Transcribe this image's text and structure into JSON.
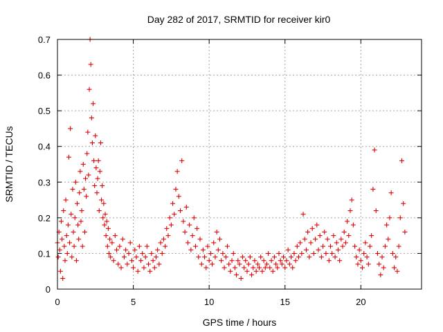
{
  "chart_data": {
    "type": "scatter",
    "title": "Day 282 of 2017, SRMTID for receiver kir0",
    "xlabel": "GPS time / hours",
    "ylabel": "SRMTID / TECUs",
    "xlim": [
      0,
      24
    ],
    "ylim": [
      0,
      0.7
    ],
    "xticks": [
      0,
      5,
      10,
      15,
      20
    ],
    "xtick_labels": [
      "0",
      "5",
      "10",
      "15",
      "20"
    ],
    "yticks": [
      0,
      0.1,
      0.2,
      0.3,
      0.4,
      0.5,
      0.6,
      0.7
    ],
    "ytick_labels": [
      "0",
      "0.1",
      "0.2",
      "0.3",
      "0.4",
      "0.5",
      "0.6",
      "0.7"
    ],
    "grid": true,
    "marker": "+",
    "color": "#e00000",
    "series": [
      {
        "name": "SRMTID",
        "points": [
          [
            0.0,
            0.13
          ],
          [
            0.05,
            0.09
          ],
          [
            0.1,
            0.16
          ],
          [
            0.15,
            0.11
          ],
          [
            0.2,
            0.05
          ],
          [
            0.25,
            0.19
          ],
          [
            0.3,
            0.14
          ],
          [
            0.35,
            0.03
          ],
          [
            0.4,
            0.22
          ],
          [
            0.45,
            0.12
          ],
          [
            0.5,
            0.08
          ],
          [
            0.55,
            0.25
          ],
          [
            0.6,
            0.15
          ],
          [
            0.65,
            0.1
          ],
          [
            0.7,
            0.18
          ],
          [
            0.75,
            0.37
          ],
          [
            0.8,
            0.13
          ],
          [
            0.85,
            0.45
          ],
          [
            0.9,
            0.21
          ],
          [
            0.95,
            0.09
          ],
          [
            1.0,
            0.28
          ],
          [
            1.05,
            0.16
          ],
          [
            1.1,
            0.12
          ],
          [
            1.15,
            0.2
          ],
          [
            1.2,
            0.3
          ],
          [
            1.25,
            0.08
          ],
          [
            1.3,
            0.24
          ],
          [
            1.35,
            0.18
          ],
          [
            1.4,
            0.14
          ],
          [
            1.45,
            0.27
          ],
          [
            1.5,
            0.33
          ],
          [
            1.55,
            0.19
          ],
          [
            1.6,
            0.22
          ],
          [
            1.65,
            0.12
          ],
          [
            1.7,
            0.35
          ],
          [
            1.75,
            0.28
          ],
          [
            1.8,
            0.16
          ],
          [
            1.85,
            0.31
          ],
          [
            1.9,
            0.26
          ],
          [
            1.95,
            0.38
          ],
          [
            2.0,
            0.44
          ],
          [
            2.05,
            0.32
          ],
          [
            2.1,
            0.56
          ],
          [
            2.15,
            0.7
          ],
          [
            2.2,
            0.63
          ],
          [
            2.25,
            0.48
          ],
          [
            2.3,
            0.41
          ],
          [
            2.35,
            0.52
          ],
          [
            2.4,
            0.36
          ],
          [
            2.45,
            0.29
          ],
          [
            2.5,
            0.43
          ],
          [
            2.55,
            0.34
          ],
          [
            2.6,
            0.27
          ],
          [
            2.65,
            0.31
          ],
          [
            2.7,
            0.36
          ],
          [
            2.75,
            0.22
          ],
          [
            2.8,
            0.33
          ],
          [
            2.85,
            0.41
          ],
          [
            2.9,
            0.25
          ],
          [
            2.95,
            0.29
          ],
          [
            3.0,
            0.2
          ],
          [
            3.05,
            0.24
          ],
          [
            3.1,
            0.18
          ],
          [
            3.15,
            0.21
          ],
          [
            3.2,
            0.15
          ],
          [
            3.25,
            0.19
          ],
          [
            3.3,
            0.12
          ],
          [
            3.35,
            0.17
          ],
          [
            3.4,
            0.1
          ],
          [
            3.45,
            0.14
          ],
          [
            3.5,
            0.09
          ],
          [
            3.6,
            0.13
          ],
          [
            3.7,
            0.08
          ],
          [
            3.8,
            0.15
          ],
          [
            3.9,
            0.11
          ],
          [
            4.0,
            0.07
          ],
          [
            4.1,
            0.12
          ],
          [
            4.2,
            0.06
          ],
          [
            4.3,
            0.14
          ],
          [
            4.4,
            0.09
          ],
          [
            4.5,
            0.11
          ],
          [
            4.6,
            0.07
          ],
          [
            4.7,
            0.1
          ],
          [
            4.8,
            0.13
          ],
          [
            4.9,
            0.08
          ],
          [
            5.0,
            0.06
          ],
          [
            5.1,
            0.11
          ],
          [
            5.2,
            0.09
          ],
          [
            5.3,
            0.05
          ],
          [
            5.4,
            0.12
          ],
          [
            5.5,
            0.08
          ],
          [
            5.6,
            0.1
          ],
          [
            5.7,
            0.06
          ],
          [
            5.8,
            0.09
          ],
          [
            5.9,
            0.12
          ],
          [
            6.0,
            0.07
          ],
          [
            6.1,
            0.05
          ],
          [
            6.2,
            0.1
          ],
          [
            6.3,
            0.08
          ],
          [
            6.4,
            0.06
          ],
          [
            6.5,
            0.09
          ],
          [
            6.6,
            0.11
          ],
          [
            6.7,
            0.07
          ],
          [
            6.8,
            0.13
          ],
          [
            6.9,
            0.1
          ],
          [
            7.0,
            0.14
          ],
          [
            7.1,
            0.12
          ],
          [
            7.2,
            0.17
          ],
          [
            7.3,
            0.15
          ],
          [
            7.4,
            0.2
          ],
          [
            7.5,
            0.18
          ],
          [
            7.6,
            0.24
          ],
          [
            7.7,
            0.21
          ],
          [
            7.8,
            0.28
          ],
          [
            7.9,
            0.33
          ],
          [
            8.0,
            0.26
          ],
          [
            8.1,
            0.22
          ],
          [
            8.2,
            0.36
          ],
          [
            8.3,
            0.19
          ],
          [
            8.4,
            0.16
          ],
          [
            8.5,
            0.23
          ],
          [
            8.6,
            0.13
          ],
          [
            8.7,
            0.18
          ],
          [
            8.8,
            0.11
          ],
          [
            8.9,
            0.15
          ],
          [
            9.0,
            0.2
          ],
          [
            9.1,
            0.12
          ],
          [
            9.2,
            0.17
          ],
          [
            9.3,
            0.09
          ],
          [
            9.4,
            0.14
          ],
          [
            9.5,
            0.07
          ],
          [
            9.6,
            0.11
          ],
          [
            9.7,
            0.09
          ],
          [
            9.8,
            0.06
          ],
          [
            9.9,
            0.12
          ],
          [
            10.0,
            0.08
          ],
          [
            10.1,
            0.1
          ],
          [
            10.2,
            0.07
          ],
          [
            10.3,
            0.13
          ],
          [
            10.4,
            0.09
          ],
          [
            10.5,
            0.16
          ],
          [
            10.6,
            0.11
          ],
          [
            10.7,
            0.14
          ],
          [
            10.8,
            0.08
          ],
          [
            10.9,
            0.1
          ],
          [
            11.0,
            0.06
          ],
          [
            11.1,
            0.09
          ],
          [
            11.2,
            0.12
          ],
          [
            11.3,
            0.07
          ],
          [
            11.4,
            0.05
          ],
          [
            11.5,
            0.08
          ],
          [
            11.6,
            0.1
          ],
          [
            11.7,
            0.06
          ],
          [
            11.8,
            0.04
          ],
          [
            11.9,
            0.08
          ],
          [
            12.0,
            0.07
          ],
          [
            12.1,
            0.03
          ],
          [
            12.2,
            0.09
          ],
          [
            12.3,
            0.06
          ],
          [
            12.4,
            0.08
          ],
          [
            12.5,
            0.05
          ],
          [
            12.6,
            0.07
          ],
          [
            12.7,
            0.09
          ],
          [
            12.8,
            0.04
          ],
          [
            12.9,
            0.06
          ],
          [
            13.0,
            0.08
          ],
          [
            13.1,
            0.05
          ],
          [
            13.2,
            0.07
          ],
          [
            13.3,
            0.06
          ],
          [
            13.4,
            0.09
          ],
          [
            13.5,
            0.05
          ],
          [
            13.6,
            0.08
          ],
          [
            13.7,
            0.06
          ],
          [
            13.8,
            0.07
          ],
          [
            13.9,
            0.1
          ],
          [
            14.0,
            0.06
          ],
          [
            14.1,
            0.08
          ],
          [
            14.2,
            0.05
          ],
          [
            14.3,
            0.09
          ],
          [
            14.4,
            0.07
          ],
          [
            14.5,
            0.06
          ],
          [
            14.6,
            0.1
          ],
          [
            14.7,
            0.08
          ],
          [
            14.8,
            0.07
          ],
          [
            14.9,
            0.09
          ],
          [
            15.0,
            0.06
          ],
          [
            15.1,
            0.08
          ],
          [
            15.2,
            0.11
          ],
          [
            15.3,
            0.07
          ],
          [
            15.4,
            0.09
          ],
          [
            15.5,
            0.06
          ],
          [
            15.6,
            0.1
          ],
          [
            15.7,
            0.08
          ],
          [
            15.8,
            0.12
          ],
          [
            15.9,
            0.09
          ],
          [
            16.0,
            0.13
          ],
          [
            16.1,
            0.1
          ],
          [
            16.2,
            0.21
          ],
          [
            16.3,
            0.14
          ],
          [
            16.4,
            0.11
          ],
          [
            16.5,
            0.16
          ],
          [
            16.6,
            0.09
          ],
          [
            16.7,
            0.13
          ],
          [
            16.8,
            0.17
          ],
          [
            16.9,
            0.1
          ],
          [
            17.0,
            0.14
          ],
          [
            17.1,
            0.18
          ],
          [
            17.2,
            0.11
          ],
          [
            17.3,
            0.15
          ],
          [
            17.4,
            0.09
          ],
          [
            17.5,
            0.12
          ],
          [
            17.6,
            0.16
          ],
          [
            17.7,
            0.1
          ],
          [
            17.8,
            0.14
          ],
          [
            17.9,
            0.08
          ],
          [
            18.0,
            0.12
          ],
          [
            18.1,
            0.1
          ],
          [
            18.2,
            0.15
          ],
          [
            18.3,
            0.09
          ],
          [
            18.4,
            0.13
          ],
          [
            18.5,
            0.11
          ],
          [
            18.6,
            0.08
          ],
          [
            18.7,
            0.14
          ],
          [
            18.8,
            0.12
          ],
          [
            18.9,
            0.16
          ],
          [
            19.0,
            0.13
          ],
          [
            19.1,
            0.19
          ],
          [
            19.2,
            0.15
          ],
          [
            19.3,
            0.22
          ],
          [
            19.4,
            0.25
          ],
          [
            19.5,
            0.18
          ],
          [
            19.6,
            0.12
          ],
          [
            19.7,
            0.09
          ],
          [
            19.8,
            0.07
          ],
          [
            19.9,
            0.11
          ],
          [
            20.0,
            0.08
          ],
          [
            20.1,
            0.06
          ],
          [
            20.2,
            0.1
          ],
          [
            20.3,
            0.13
          ],
          [
            20.4,
            0.09
          ],
          [
            20.5,
            0.07
          ],
          [
            20.6,
            0.12
          ],
          [
            20.7,
            0.15
          ],
          [
            20.8,
            0.28
          ],
          [
            20.9,
            0.39
          ],
          [
            21.0,
            0.22
          ],
          [
            21.1,
            0.1
          ],
          [
            21.2,
            0.07
          ],
          [
            21.3,
            0.04
          ],
          [
            21.4,
            0.09
          ],
          [
            21.5,
            0.06
          ],
          [
            21.6,
            0.12
          ],
          [
            21.7,
            0.18
          ],
          [
            21.8,
            0.14
          ],
          [
            21.9,
            0.2
          ],
          [
            22.0,
            0.27
          ],
          [
            22.1,
            0.1
          ],
          [
            22.2,
            0.06
          ],
          [
            22.3,
            0.09
          ],
          [
            22.4,
            0.05
          ],
          [
            22.5,
            0.12
          ],
          [
            22.6,
            0.2
          ],
          [
            22.7,
            0.36
          ],
          [
            22.8,
            0.24
          ],
          [
            22.9,
            0.16
          ]
        ]
      }
    ]
  }
}
